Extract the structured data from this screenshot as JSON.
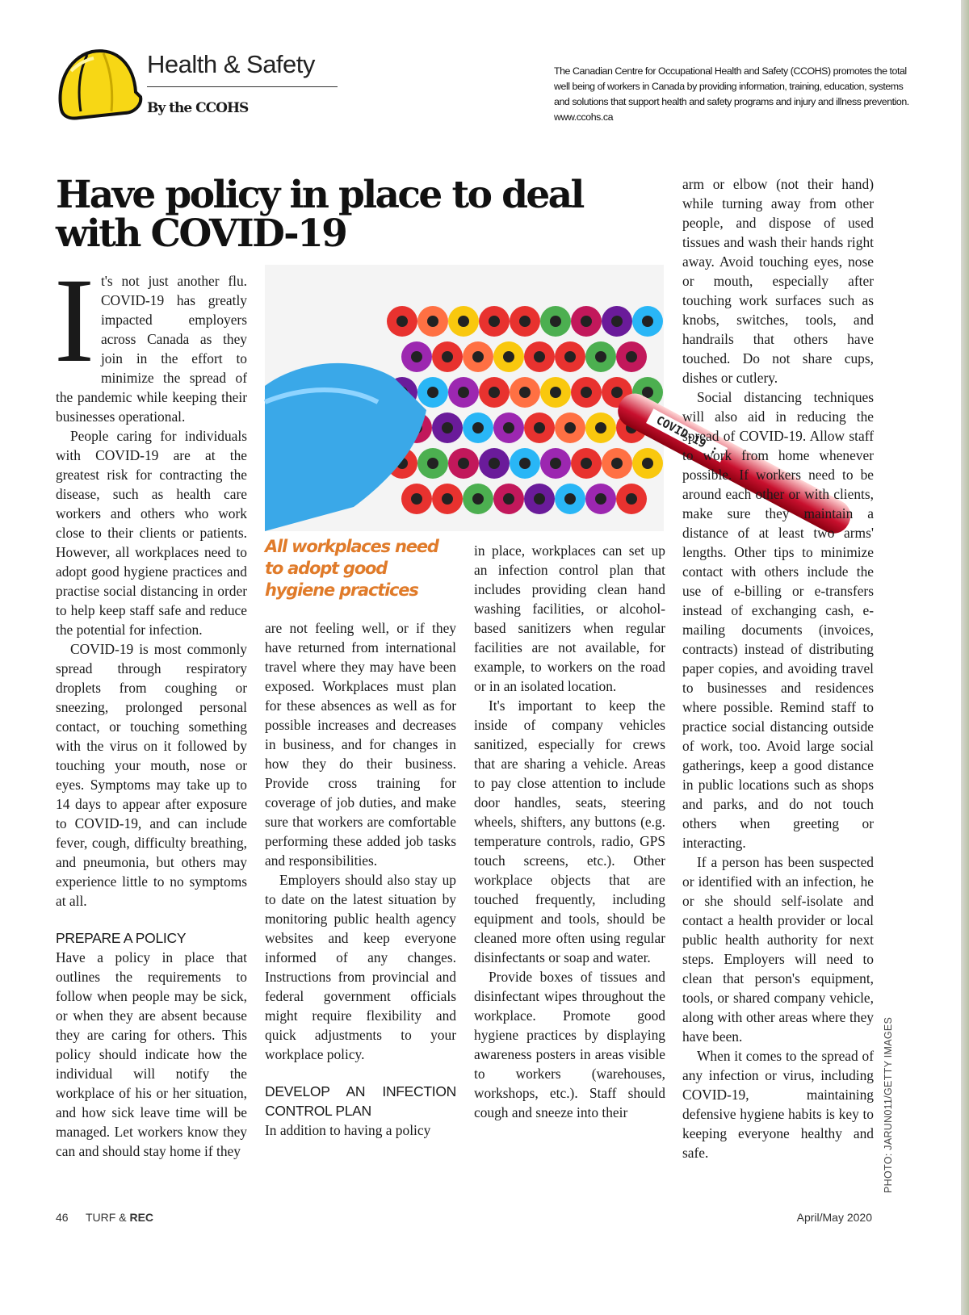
{
  "header": {
    "section": "Health & Safety",
    "byline": "By the CCOHS",
    "about": "The Canadian Centre for Occupational Health and Safety (CCOHS) promotes the total well being of workers in Canada by providing information, training, education, systems and solutions that support health and safety programs and injury and illness prevention.",
    "url": "www.ccohs.ca",
    "icon": "hard-hat-icon",
    "hat_color": "#f7d715"
  },
  "article": {
    "title": "Have policy in place to deal with COVID-19",
    "drop_cap": "I",
    "photo_label": "COVID-19 :",
    "caption": "All workplaces need to adopt good hygiene practices",
    "caption_color": "#e07b2a",
    "photo_credit": "PHOTO: JARUN011/GETTY IMAGES",
    "col1": [
      "t's not just another flu. COVID-19 has greatly impacted employers across Canada as they join in the effort to minimize the spread of the pandemic while keeping their businesses operational.",
      "People caring for individuals with COVID-19 are at the greatest risk for contracting the disease, such as health care workers and others who work close to their clients or patients. However, all workplaces need to adopt good hygiene practices and practise social distancing in order to help keep staff safe and reduce the potential for infection.",
      "COVID-19 is most commonly spread through respiratory droplets from coughing or sneezing, prolonged personal contact, or touching something with the virus on it followed by touching your mouth, nose or eyes. Symptoms may take up to 14 days to appear after exposure to COVID-19, and can include fever, cough, difficulty breathing, and pneumonia, but others may experience little to no symptoms at all."
    ],
    "heading1": "PREPARE A POLICY",
    "col1b": "Have a policy in place that outlines the requirements to follow when people may be sick, or when they are absent because they are caring for others. This policy should indicate how the individual will notify the workplace of his or her situation, and how sick leave time will be managed. Let workers know they can and should stay home if they",
    "col2": [
      "are not feeling well, or if they have returned from international travel where they may have been exposed. Workplaces must plan for these absences as well as for possible increases and decreases in business, and for changes in how they do their business. Provide cross training for coverage of job duties, and make sure that workers are comfortable performing these added job tasks and responsibilities.",
      "Employers should also stay up to date on the latest situation by monitoring public health agency websites and keep everyone informed of any changes. Instructions from provincial and federal government officials might require flexibility and quick adjustments to your workplace policy."
    ],
    "heading2": "DEVELOP AN INFECTION CONTROL PLAN",
    "col2b": "In addition to having a policy",
    "col3": [
      "in place, workplaces can set up an infection control plan that includes providing clean hand washing facilities, or alcohol-based sanitizers when regular facilities are not available, for example, to workers on the road or in an isolated location.",
      "It's important to keep the inside of company vehicles sanitized, especially for crews that are sharing a vehicle. Areas to pay close attention to include door handles, seats, steering wheels, shifters, any buttons (e.g. temperature controls, radio, GPS touch screens, etc.). Other workplace objects that are touched frequently, including equipment and tools, should be cleaned more often using regular disinfectants or soap and water.",
      "Provide boxes of tissues and disinfectant wipes throughout the workplace. Promote good hygiene practices by displaying awareness posters in areas visible to workers (warehouses, workshops, etc.). Staff should cough and sneeze into their"
    ],
    "col4": [
      "arm or elbow (not their hand) while turning away from other people, and dispose of used tissues and wash their hands right away. Avoid touching eyes, nose or mouth, especially after touching work surfaces such as knobs, switches, tools, and handrails that others have touched. Do not share cups, dishes or cutlery.",
      "Social distancing techniques will also aid in reducing the spread of COVID-19. Allow staff to work from home whenever possible. If workers need to be around each other or with clients, make sure they maintain a distance of at least two arms' lengths. Other tips to minimize contact with others include the use of e-billing or e-transfers instead of exchanging cash, e-mailing documents (invoices, contracts) instead of distributing paper copies, and avoiding travel to businesses and residences where possible. Remind staff to practice social distancing outside of work, too. Avoid large social gatherings, keep a good distance in public locations such as shops and parks, and do not touch others when greeting or interacting.",
      "If a person has been suspected or identified with an infection, he or she should self-isolate and contact a health provider or local public health authority for next steps. Employers will need to clean that person's equipment, tools, or shared company vehicle, along with other areas where they have been.",
      "When it comes to the spread of any infection or virus, including COVID-19, maintaining defensive hygiene habits is key to keeping everyone healthy and safe."
    ]
  },
  "footer": {
    "page": "46",
    "mag_a": "TURF & ",
    "mag_b": "REC",
    "date": "April/May 2020"
  }
}
